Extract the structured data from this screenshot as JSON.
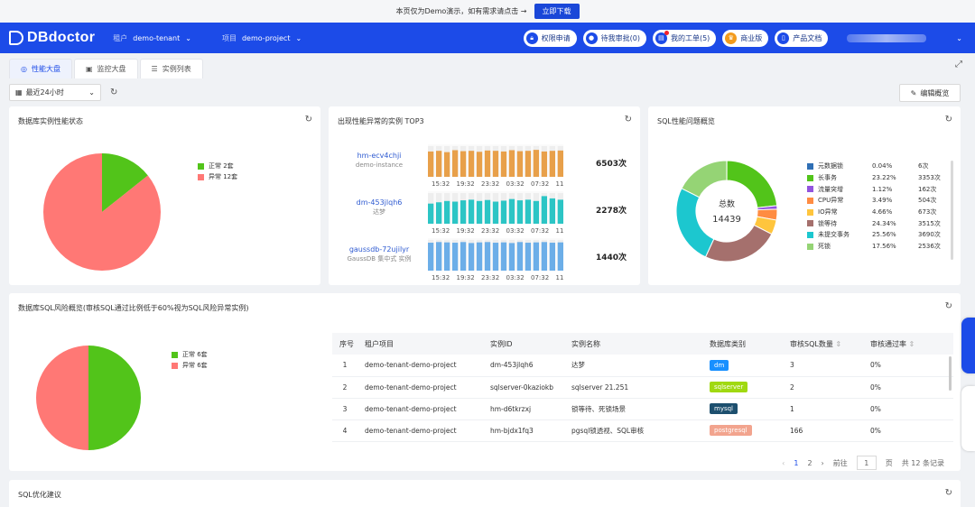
{
  "banner": {
    "text": "本页仅为Demo演示，如有需求请点击 →",
    "button": "立即下载"
  },
  "nav": {
    "logo": "DBdoctor",
    "tenant_label": "租户",
    "tenant_value": "demo-tenant",
    "project_label": "项目",
    "project_value": "demo-project",
    "buttons": [
      "权限申请",
      "待我审批(0)",
      "我的工单(5)",
      "商业版",
      "产品文档"
    ]
  },
  "tabs": [
    "性能大盘",
    "监控大盘",
    "实例列表"
  ],
  "toolbar": {
    "time_range": "最近24小时",
    "edit_button": "编辑概览"
  },
  "card_status": {
    "title": "数据库实例性能状态",
    "legend": [
      {
        "label": "正常 2套",
        "color": "#52c41a",
        "value": 2
      },
      {
        "label": "异常 12套",
        "color": "#ff7875",
        "value": 12
      }
    ]
  },
  "card_top3": {
    "title": "出现性能异常的实例 TOP3",
    "x_ticks": [
      "15:32",
      "19:32",
      "23:32",
      "03:32",
      "07:32",
      "11:32"
    ],
    "rows": [
      {
        "name": "hm-ecv4chji",
        "desc": "demo-instance",
        "count": "6503次",
        "color": "#e8a04a",
        "values": [
          0.78,
          0.8,
          0.76,
          0.82,
          0.79,
          0.8,
          0.77,
          0.81,
          0.8,
          0.78,
          0.82,
          0.79,
          0.8,
          0.83,
          0.78,
          0.8,
          0.81
        ]
      },
      {
        "name": "dm-453jlqh6",
        "desc": "达梦",
        "count": "2278次",
        "color": "#2cc5c5",
        "values": [
          0.62,
          0.66,
          0.7,
          0.68,
          0.72,
          0.74,
          0.7,
          0.73,
          0.68,
          0.71,
          0.76,
          0.72,
          0.74,
          0.7,
          0.85,
          0.78,
          0.74
        ]
      },
      {
        "name": "gaussdb-72ujilyr",
        "desc": "GaussDB 集中式 实例",
        "count": "1440次",
        "color": "#6caee8",
        "values": [
          0.86,
          0.88,
          0.87,
          0.86,
          0.88,
          0.85,
          0.87,
          0.88,
          0.86,
          0.87,
          0.85,
          0.88,
          0.86,
          0.87,
          0.88,
          0.86,
          0.87
        ]
      }
    ]
  },
  "card_sql": {
    "title": "SQL性能问题概览",
    "center_label": "总数",
    "total": "14439",
    "items": [
      {
        "label": "元数据锁",
        "pct": "0.04%",
        "count": "6次",
        "color": "#2f6fb5",
        "value": 6
      },
      {
        "label": "长事务",
        "pct": "23.22%",
        "count": "3353次",
        "color": "#52c41a",
        "value": 3353
      },
      {
        "label": "流量突增",
        "pct": "1.12%",
        "count": "162次",
        "color": "#9254de",
        "value": 162
      },
      {
        "label": "CPU异常",
        "pct": "3.49%",
        "count": "504次",
        "color": "#ff8c42",
        "value": 504
      },
      {
        "label": "IO异常",
        "pct": "4.66%",
        "count": "673次",
        "color": "#ffc53d",
        "value": 673
      },
      {
        "label": "锁等待",
        "pct": "24.34%",
        "count": "3515次",
        "color": "#a5706d",
        "value": 3515
      },
      {
        "label": "未提交事务",
        "pct": "25.56%",
        "count": "3690次",
        "color": "#1cc7cf",
        "value": 3690
      },
      {
        "label": "死锁",
        "pct": "17.56%",
        "count": "2536次",
        "color": "#95d475",
        "value": 2536
      }
    ]
  },
  "card_risk": {
    "title": "数据库SQL风险概览(审核SQL通过比例低于60%视为SQL风险异常实例)",
    "legend": [
      {
        "label": "正常 6套",
        "color": "#52c41a",
        "value": 6
      },
      {
        "label": "异常 6套",
        "color": "#ff7875",
        "value": 6
      }
    ],
    "columns": [
      "序号",
      "租户项目",
      "实例ID",
      "实例名称",
      "数据库类别",
      "审核SQL数量",
      "审核通过率"
    ],
    "rows": [
      {
        "no": "1",
        "tenant": "demo-tenant-demo-project",
        "id": "dm-453jlqh6",
        "name": "达梦",
        "type": "dm",
        "type_color": "#1890ff",
        "sql": "3",
        "rate": "0%"
      },
      {
        "no": "2",
        "tenant": "demo-tenant-demo-project",
        "id": "sqlserver-0kaziokb",
        "name": "sqlserver 21.251",
        "type": "sqlserver",
        "type_color": "#a0d911",
        "sql": "2",
        "rate": "0%"
      },
      {
        "no": "3",
        "tenant": "demo-tenant-demo-project",
        "id": "hm-d6tkrzxj",
        "name": "锁等待、死锁场景",
        "type": "mysql",
        "type_color": "#1d4f6e",
        "sql": "1",
        "rate": "0%"
      },
      {
        "no": "4",
        "tenant": "demo-tenant-demo-project",
        "id": "hm-bjdx1fq3",
        "name": "pgsql锁透视、SQL审核",
        "type": "postgresql",
        "type_color": "#f2a48e",
        "sql": "166",
        "rate": "0%"
      }
    ],
    "pager": {
      "pages": [
        "1",
        "2"
      ],
      "goto_label": "前往",
      "goto_value": "1",
      "page_label": "页",
      "total": "共 12 条记录"
    }
  },
  "card_opt": {
    "title": "SQL优化建议"
  }
}
